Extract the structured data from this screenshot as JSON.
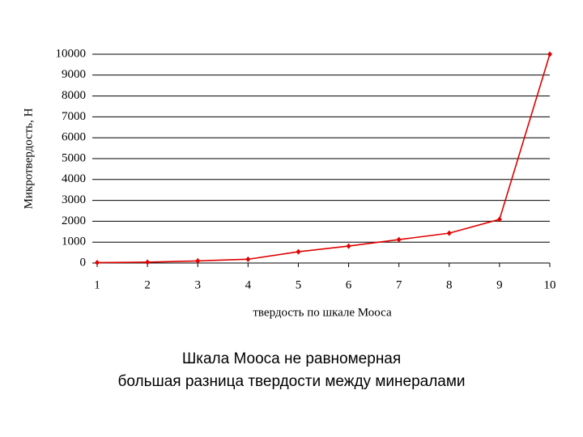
{
  "chart_data": {
    "type": "line",
    "xlabel": "твердость по шкале Мооса",
    "ylabel": "Микротвердость, Н",
    "x": [
      1,
      2,
      3,
      4,
      5,
      6,
      7,
      8,
      9,
      10
    ],
    "series": [
      {
        "name": "Микротвердость",
        "color": "#e00000",
        "values": [
          20,
          40,
          100,
          180,
          540,
          810,
          1120,
          1430,
          2090,
          10000
        ]
      }
    ],
    "xlim": [
      1,
      10
    ],
    "xticks": [
      1,
      2,
      3,
      4,
      5,
      6,
      7,
      8,
      9,
      10
    ],
    "ylim": [
      0,
      10000
    ],
    "yticks": [
      0,
      1000,
      2000,
      3000,
      4000,
      5000,
      6000,
      7000,
      8000,
      9000,
      10000
    ],
    "grid": true
  },
  "caption": {
    "lines": [
      "Шкала Мооса не равномерная",
      "большая разница твердости между минералами"
    ]
  }
}
